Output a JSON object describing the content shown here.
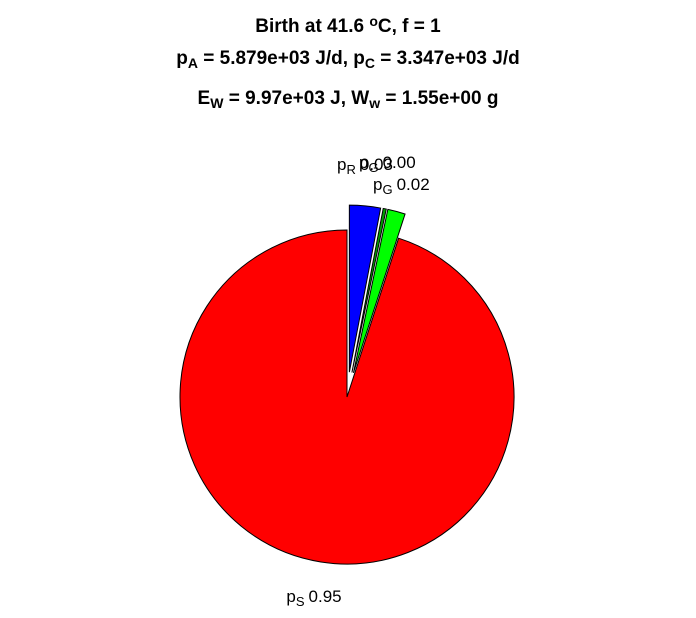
{
  "chart_data": {
    "type": "pie",
    "title_lines": [
      {
        "segments": [
          {
            "t": "Birth at 41.6 "
          },
          {
            "t": "o",
            "sup": true
          },
          {
            "t": "C, f = 1"
          }
        ]
      },
      {
        "segments": [
          {
            "t": "p"
          },
          {
            "t": "A",
            "sub": true
          },
          {
            "t": " = 5.879e+03 J/d, p"
          },
          {
            "t": "C",
            "sub": true
          },
          {
            "t": " = 3.347e+03 J/d"
          }
        ]
      },
      {
        "segments": [
          {
            "t": "E"
          },
          {
            "t": "W",
            "sub": true
          },
          {
            "t": " = 9.97e+03 J, W"
          },
          {
            "t": "w",
            "sub": true
          },
          {
            "t": " = 1.55e+00 g"
          }
        ]
      }
    ],
    "slices": [
      {
        "symbol": "p",
        "sub": "R",
        "value_label": "0.03",
        "value": 0.03,
        "color": "#0000ff"
      },
      {
        "symbol": "p",
        "sub": "G",
        "value_label": "0.00",
        "value": 0.003,
        "color": "#00a000"
      },
      {
        "symbol": "p",
        "sub": "G",
        "value_label": "0.02",
        "value": 0.017,
        "color": "#00ff00"
      },
      {
        "symbol": "p",
        "sub": "S",
        "value_label": "0.95",
        "value": 0.95,
        "color": "#ff0000"
      }
    ],
    "explode": [
      true,
      true,
      true,
      false
    ],
    "start_angle_deg": 90,
    "direction": "clockwise",
    "legend": "none"
  }
}
